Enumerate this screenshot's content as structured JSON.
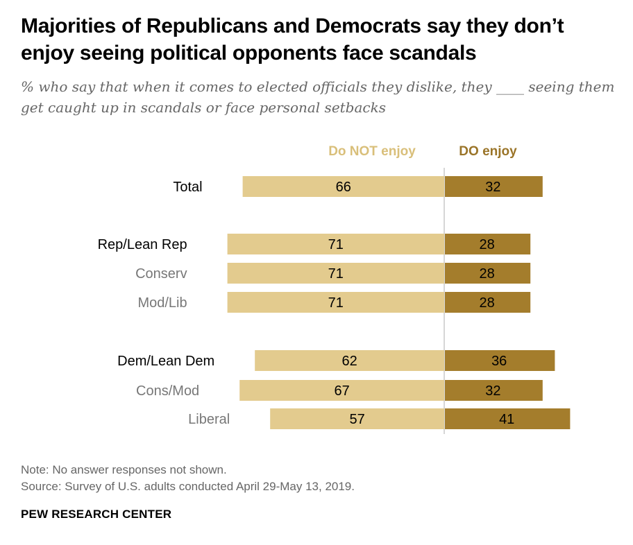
{
  "title": "Majorities of Republicans and Democrats say they don’t enjoy seeing political opponents face scandals",
  "subtitle": "% who say that when it comes to elected officials they dislike, they ____ seeing them get caught up in scandals or face personal setbacks",
  "chart_data": {
    "type": "bar",
    "orientation": "horizontal-diverging",
    "categories": [
      "Total",
      "Rep/Lean Rep",
      "Conserv",
      "Mod/Lib",
      "Dem/Lean Dem",
      "Cons/Mod",
      "Liberal"
    ],
    "category_style": [
      "main",
      "main",
      "sub",
      "sub",
      "main",
      "sub",
      "sub"
    ],
    "series": [
      {
        "name": "Do NOT enjoy",
        "color": "#e3cb8e",
        "label_color": "#d9bf7a",
        "values": [
          66,
          71,
          71,
          71,
          62,
          67,
          57
        ]
      },
      {
        "name": "DO enjoy",
        "color": "#a47d2c",
        "label_color": "#9a7428",
        "values": [
          32,
          28,
          28,
          28,
          36,
          32,
          41
        ]
      }
    ],
    "legend_position": "top",
    "grid": false
  },
  "notes": {
    "note": "Note: No answer responses not shown.",
    "source": "Source: Survey of U.S. adults conducted April 29-May 13, 2019."
  },
  "brand": "PEW RESEARCH CENTER",
  "colors": {
    "main_label": "#000000",
    "sub_label": "#777777",
    "divider": "#c8c8c8"
  }
}
